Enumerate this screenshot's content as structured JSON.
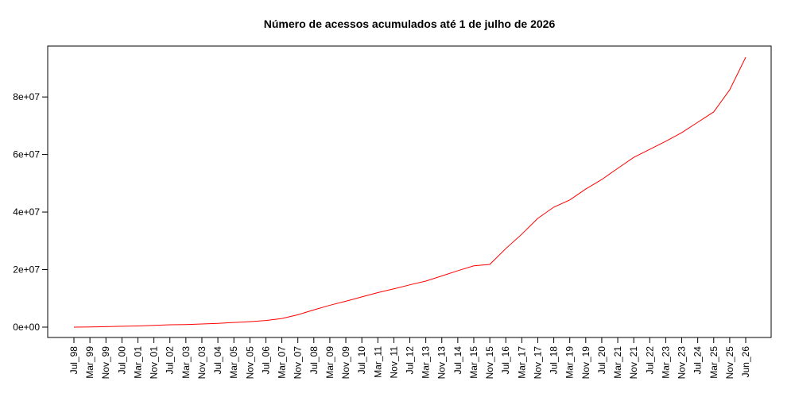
{
  "chart_data": {
    "type": "line",
    "title": "Número de acessos acumulados até 1 de julho de 2026",
    "categories": [
      "Jul_98",
      "Mar_99",
      "Nov_99",
      "Jul_00",
      "Mar_01",
      "Nov_01",
      "Jul_02",
      "Mar_03",
      "Nov_03",
      "Jul_04",
      "Mar_05",
      "Nov_05",
      "Jul_06",
      "Mar_07",
      "Nov_07",
      "Jul_08",
      "Mar_09",
      "Nov_09",
      "Jul_10",
      "Mar_11",
      "Nov_11",
      "Jul_12",
      "Mar_13",
      "Nov_13",
      "Jul_14",
      "Mar_15",
      "Nov_15",
      "Jul_16",
      "Mar_17",
      "Nov_17",
      "Jul_18",
      "Mar_19",
      "Nov_19",
      "Jul_20",
      "Mar_21",
      "Nov_21",
      "Jul_22",
      "Mar_23",
      "Nov_23",
      "Jul_24",
      "Mar_25",
      "Nov_25",
      "Jun_26"
    ],
    "values": [
      0,
      50000,
      150000,
      300000,
      400000,
      600000,
      800000,
      900000,
      1100000,
      1300000,
      1600000,
      1900000,
      2300000,
      3000000,
      4300000,
      6000000,
      7600000,
      9000000,
      10500000,
      12000000,
      13300000,
      14700000,
      16000000,
      17800000,
      19600000,
      21300000,
      21800000,
      27300000,
      32300000,
      37800000,
      41700000,
      44200000,
      48000000,
      51300000,
      55200000,
      59000000,
      61800000,
      64600000,
      67600000,
      71200000,
      74800000,
      82500000,
      93800000
    ],
    "color": "#ff0000",
    "ylim": [
      -3600000,
      97700000
    ],
    "yticks": [
      {
        "value": 0,
        "label": "0e+00"
      },
      {
        "value": 20000000,
        "label": "2e+07"
      },
      {
        "value": 40000000,
        "label": "4e+07"
      },
      {
        "value": 60000000,
        "label": "6e+07"
      },
      {
        "value": 80000000,
        "label": "8e+07"
      }
    ]
  }
}
